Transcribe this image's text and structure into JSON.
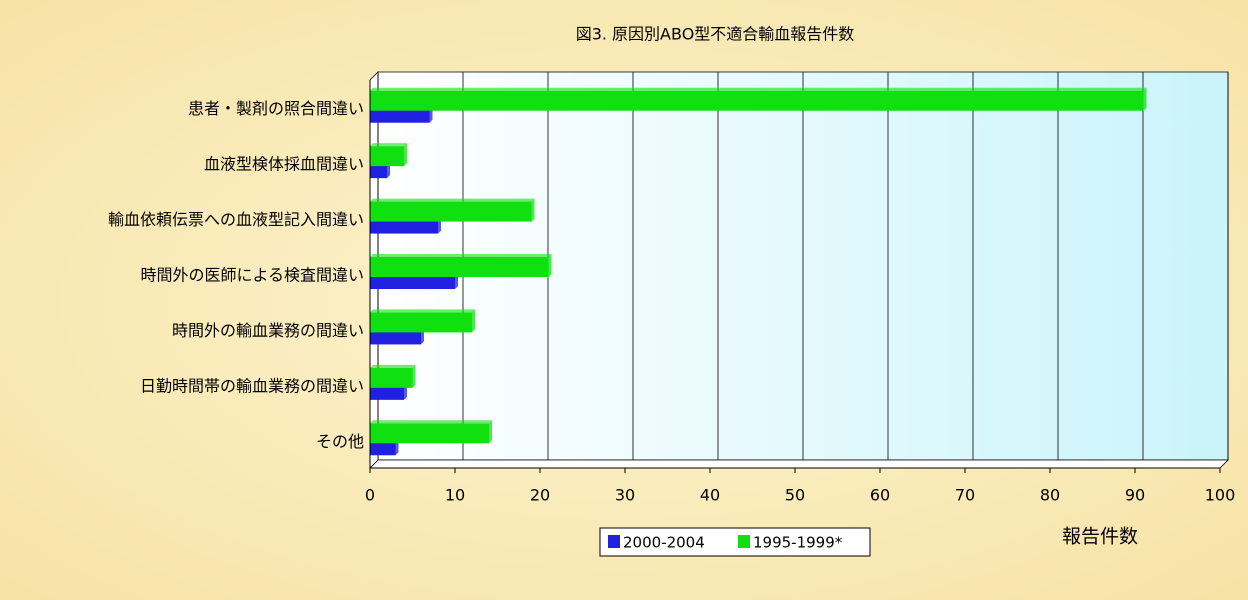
{
  "chart_data": {
    "type": "barh",
    "title": "図3. 原因別ABO型不適合輸血報告件数",
    "x_label": "報告件数",
    "categories": [
      "患者・製剤の照合間違い",
      "血液型検体採血間違い",
      "輸血依頼伝票への血液型記入間違い",
      "時間外の医師による検査間違い",
      "時間外の輸血業務の間違い",
      "日勤時間帯の輸血業務の間違い",
      "その他"
    ],
    "series": [
      {
        "name": "2000-2004",
        "color": "#2020e0",
        "values": [
          7,
          2,
          8,
          10,
          6,
          4,
          3
        ]
      },
      {
        "name": "1995-1999*",
        "color": "#10e010",
        "values": [
          91,
          4,
          19,
          21,
          12,
          5,
          14
        ]
      }
    ],
    "xlim": [
      0,
      100
    ],
    "xticks": [
      0,
      10,
      20,
      30,
      40,
      50,
      60,
      70,
      80,
      90,
      100
    ],
    "grid": true,
    "legend": "bottom"
  }
}
